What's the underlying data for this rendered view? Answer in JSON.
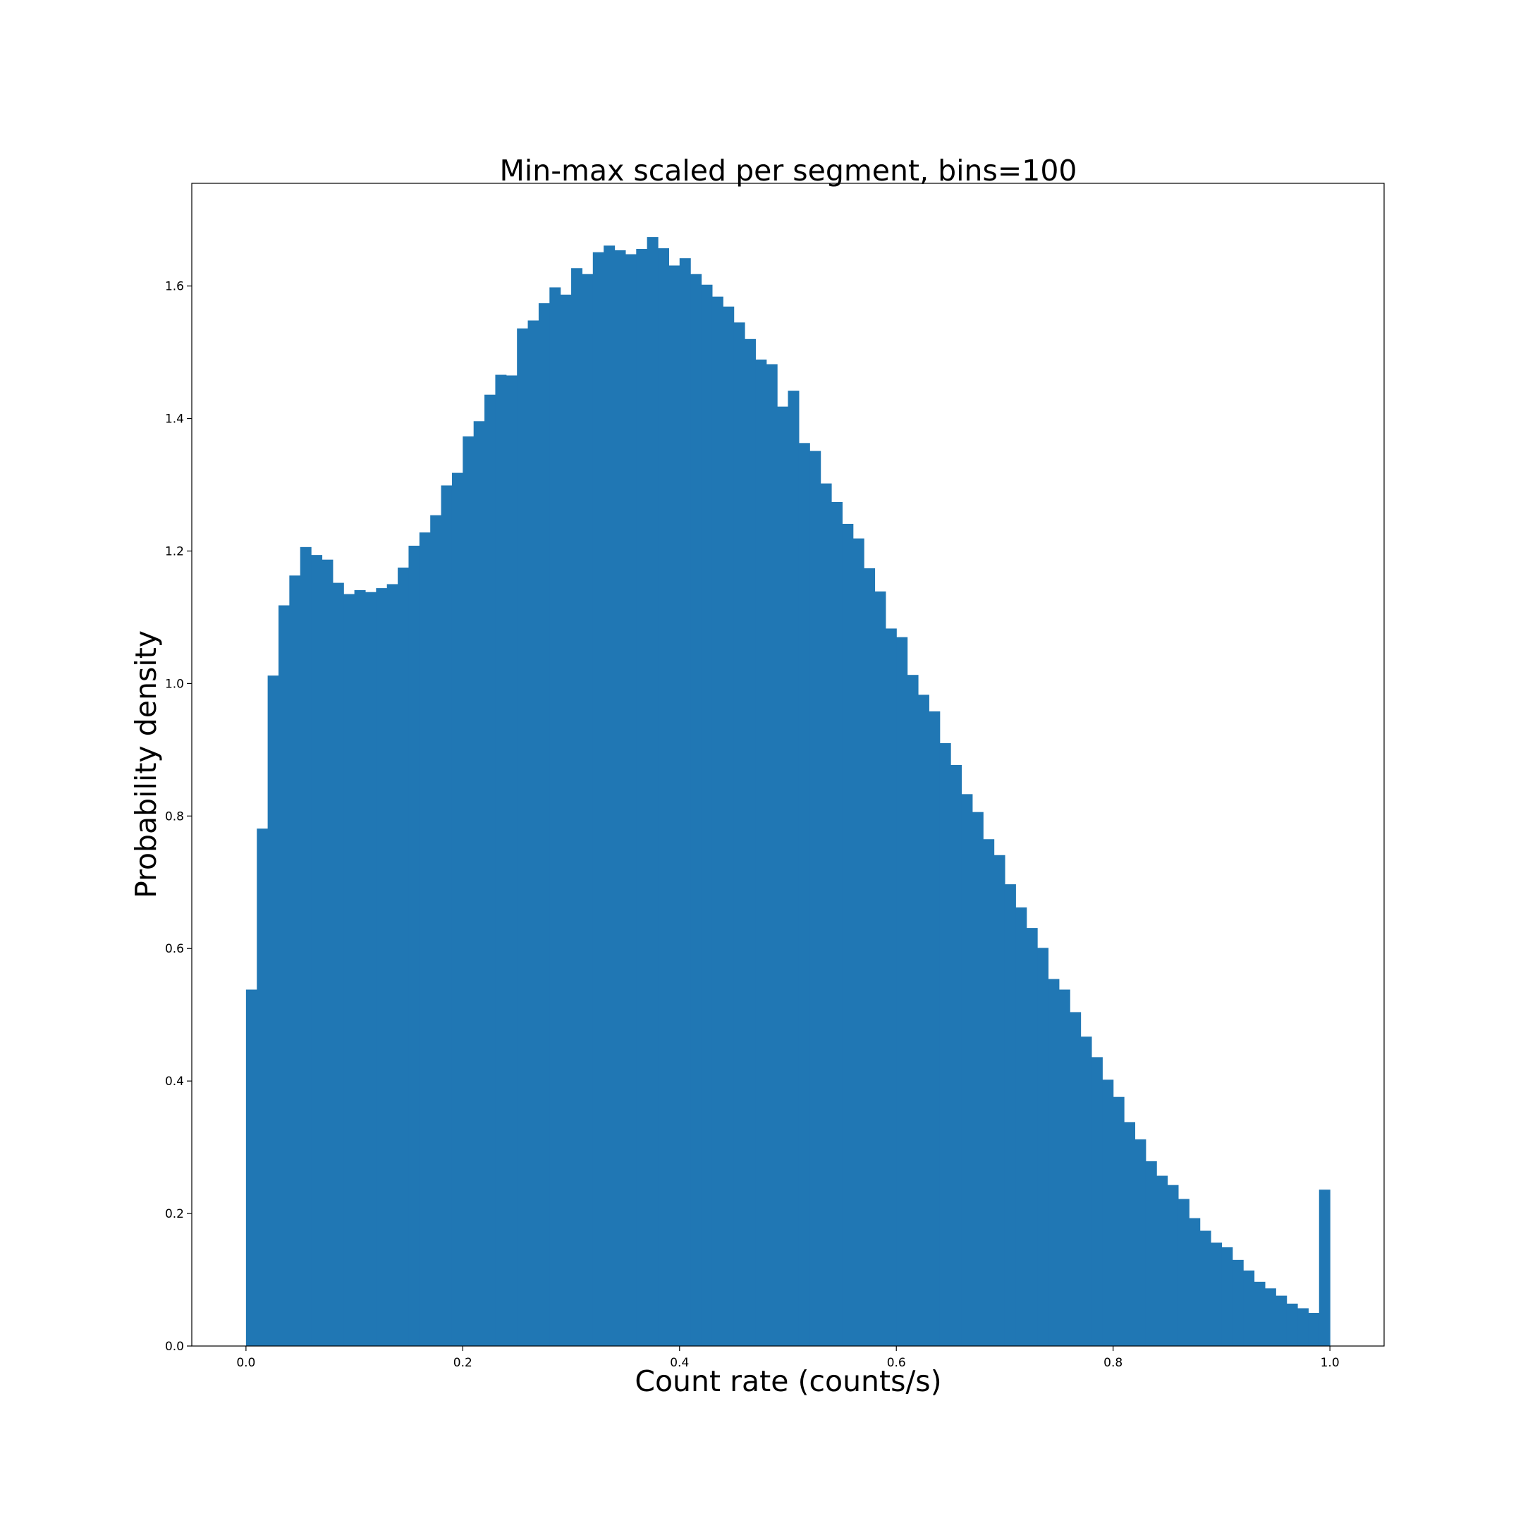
{
  "chart_data": {
    "type": "bar",
    "title": "Min-max scaled per segment, bins=100",
    "xlabel": "Count rate (counts/s)",
    "ylabel": "Probability density",
    "xlim": [
      -0.05,
      1.05
    ],
    "ylim": [
      0,
      1.755
    ],
    "bin_start": 0.0,
    "bin_width": 0.01,
    "x_ticks": [
      0.0,
      0.2,
      0.4,
      0.6,
      0.8,
      1.0
    ],
    "x_tick_labels": [
      "0.0",
      "0.2",
      "0.4",
      "0.6",
      "0.8",
      "1.0"
    ],
    "y_ticks": [
      0.0,
      0.2,
      0.4,
      0.6,
      0.8,
      1.0,
      1.2,
      1.4,
      1.6
    ],
    "y_tick_labels": [
      "0.0",
      "0.2",
      "0.4",
      "0.6",
      "0.8",
      "1.0",
      "1.2",
      "1.4",
      "1.6"
    ],
    "grid": false,
    "bar_color": "#2077b4",
    "values": [
      0.538,
      0.781,
      1.012,
      1.118,
      1.163,
      1.206,
      1.194,
      1.187,
      1.152,
      1.135,
      1.141,
      1.138,
      1.144,
      1.15,
      1.175,
      1.208,
      1.228,
      1.254,
      1.299,
      1.318,
      1.373,
      1.396,
      1.436,
      1.466,
      1.465,
      1.536,
      1.548,
      1.574,
      1.598,
      1.587,
      1.627,
      1.618,
      1.651,
      1.661,
      1.654,
      1.648,
      1.656,
      1.674,
      1.657,
      1.631,
      1.642,
      1.618,
      1.602,
      1.584,
      1.569,
      1.545,
      1.52,
      1.489,
      1.482,
      1.418,
      1.442,
      1.363,
      1.351,
      1.302,
      1.274,
      1.241,
      1.219,
      1.174,
      1.139,
      1.083,
      1.07,
      1.013,
      0.983,
      0.958,
      0.91,
      0.877,
      0.833,
      0.806,
      0.765,
      0.741,
      0.697,
      0.662,
      0.631,
      0.601,
      0.554,
      0.538,
      0.504,
      0.467,
      0.436,
      0.402,
      0.376,
      0.338,
      0.312,
      0.279,
      0.257,
      0.243,
      0.222,
      0.193,
      0.174,
      0.156,
      0.149,
      0.13,
      0.114,
      0.097,
      0.087,
      0.076,
      0.064,
      0.057,
      0.05,
      0.236
    ]
  }
}
